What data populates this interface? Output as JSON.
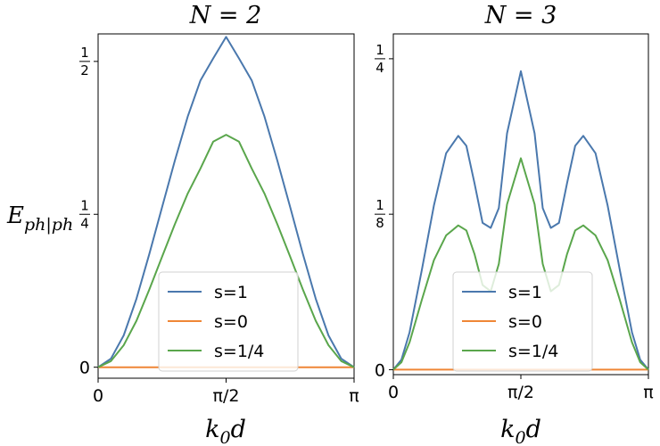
{
  "figure": {
    "ylabel_main": "E",
    "ylabel_sub": "ph|ph"
  },
  "chart_data": [
    {
      "type": "line",
      "title": "N = 2",
      "xlabel_main": "k",
      "xlabel_sub": "0",
      "xlabel_end": "d",
      "xlim": [
        0,
        3.14159
      ],
      "ylim": [
        -0.018,
        0.545
      ],
      "xticks": [
        {
          "value": 0,
          "label": "0"
        },
        {
          "value": 1.5708,
          "label": "π/2"
        },
        {
          "value": 3.14159,
          "label": "π"
        }
      ],
      "yticks": [
        {
          "value": 0,
          "label": "0"
        },
        {
          "value": 0.25,
          "label": "1/4",
          "fraction": [
            "1",
            "4"
          ]
        },
        {
          "value": 0.5,
          "label": "1/2",
          "fraction": [
            "1",
            "2"
          ]
        }
      ],
      "legend": {
        "location": "bottom-right",
        "entries": [
          "s=1",
          "s=0",
          "s=1/4"
        ]
      },
      "series": [
        {
          "name": "s=1",
          "color": "#4a78ad",
          "x": [
            0,
            0.1571,
            0.3142,
            0.4712,
            0.6283,
            0.7854,
            0.9425,
            1.0996,
            1.2566,
            1.4137,
            1.5708,
            1.7279,
            1.885,
            2.042,
            2.1991,
            2.3562,
            2.5133,
            2.6704,
            2.8274,
            2.9845,
            3.1416
          ],
          "y": [
            0,
            0.014,
            0.052,
            0.112,
            0.185,
            0.262,
            0.338,
            0.41,
            0.469,
            0.505,
            0.54,
            0.505,
            0.469,
            0.41,
            0.338,
            0.262,
            0.185,
            0.112,
            0.052,
            0.014,
            0
          ]
        },
        {
          "name": "s=0",
          "color": "#ef8636",
          "x": [
            0,
            3.1416
          ],
          "y": [
            0,
            0
          ]
        },
        {
          "name": "s=1/4",
          "color": "#5aa64c",
          "x": [
            0,
            0.1571,
            0.3142,
            0.4712,
            0.6283,
            0.7854,
            0.9425,
            1.0996,
            1.2566,
            1.4137,
            1.5708,
            1.7279,
            1.885,
            2.042,
            2.1991,
            2.3562,
            2.5133,
            2.6704,
            2.8274,
            2.9845,
            3.1416
          ],
          "y": [
            0,
            0.01,
            0.036,
            0.076,
            0.127,
            0.181,
            0.234,
            0.284,
            0.325,
            0.369,
            0.38,
            0.369,
            0.325,
            0.284,
            0.234,
            0.181,
            0.127,
            0.076,
            0.036,
            0.01,
            0
          ]
        }
      ]
    },
    {
      "type": "line",
      "title": "N = 3",
      "xlabel_main": "k",
      "xlabel_sub": "0",
      "xlabel_end": "d",
      "xlim": [
        0,
        3.14159
      ],
      "ylim": [
        -0.004,
        0.27
      ],
      "xticks": [
        {
          "value": 0,
          "label": "0"
        },
        {
          "value": 1.5708,
          "label": "π/2"
        },
        {
          "value": 3.14159,
          "label": "π"
        }
      ],
      "yticks": [
        {
          "value": 0,
          "label": "0"
        },
        {
          "value": 0.125,
          "label": "1/8",
          "fraction": [
            "1",
            "8"
          ]
        },
        {
          "value": 0.25,
          "label": "1/4",
          "fraction": [
            "1",
            "4"
          ]
        }
      ],
      "legend": {
        "location": "bottom-center",
        "entries": [
          "s=1",
          "s=0",
          "s=1/4"
        ]
      },
      "series": [
        {
          "name": "s=1",
          "color": "#4a78ad",
          "x": [
            0,
            0.1,
            0.2,
            0.35,
            0.5,
            0.65,
            0.8,
            0.9,
            1.0,
            1.1,
            1.2,
            1.3,
            1.4,
            1.5708,
            1.74,
            1.84,
            1.94,
            2.04,
            2.14,
            2.24,
            2.34,
            2.49,
            2.64,
            2.79,
            2.94,
            3.04,
            3.1416
          ],
          "y": [
            0,
            0.008,
            0.03,
            0.08,
            0.132,
            0.174,
            0.188,
            0.18,
            0.15,
            0.118,
            0.114,
            0.13,
            0.19,
            0.24,
            0.19,
            0.13,
            0.114,
            0.118,
            0.15,
            0.18,
            0.188,
            0.174,
            0.132,
            0.08,
            0.03,
            0.008,
            0
          ]
        },
        {
          "name": "s=0",
          "color": "#ef8636",
          "x": [
            0,
            3.1416
          ],
          "y": [
            0,
            0
          ]
        },
        {
          "name": "s=1/4",
          "color": "#5aa64c",
          "x": [
            0,
            0.1,
            0.2,
            0.35,
            0.5,
            0.65,
            0.8,
            0.9,
            1.0,
            1.1,
            1.2,
            1.3,
            1.4,
            1.5708,
            1.74,
            1.84,
            1.94,
            2.04,
            2.14,
            2.24,
            2.34,
            2.49,
            2.64,
            2.79,
            2.94,
            3.04,
            3.1416
          ],
          "y": [
            0,
            0.006,
            0.022,
            0.056,
            0.088,
            0.108,
            0.116,
            0.112,
            0.093,
            0.068,
            0.063,
            0.085,
            0.133,
            0.17,
            0.133,
            0.085,
            0.063,
            0.068,
            0.093,
            0.112,
            0.116,
            0.108,
            0.088,
            0.056,
            0.022,
            0.006,
            0
          ]
        }
      ]
    }
  ]
}
